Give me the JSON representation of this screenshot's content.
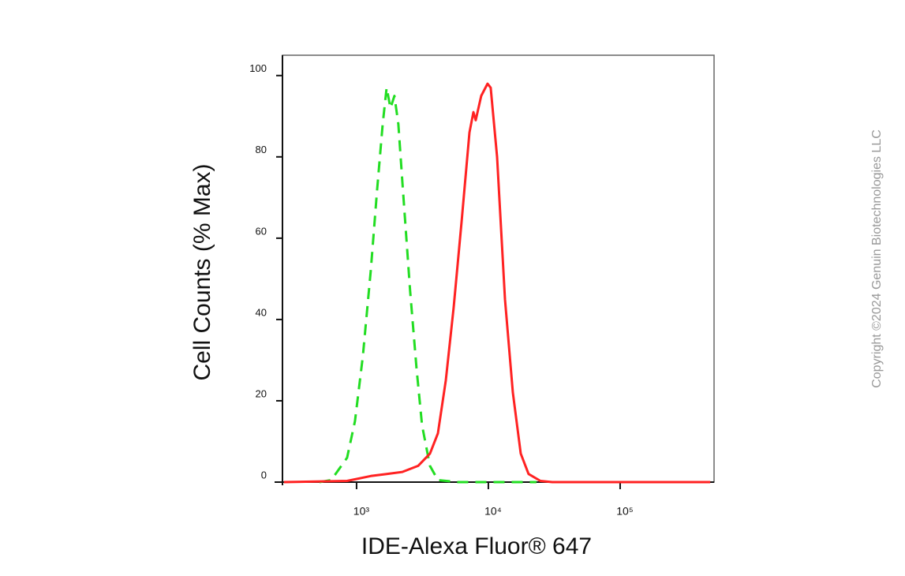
{
  "chart_data": {
    "type": "line",
    "xlabel": "IDE-Alexa Fluor® 647",
    "ylabel": "Cell Counts (% Max)",
    "watermark": "Copyright ©2024 Genuin Biotechnologies LLC",
    "xscale": "log",
    "xlim": [
      274,
      516000
    ],
    "ylim": [
      0,
      105
    ],
    "xticks": [
      {
        "value": 1000,
        "label": "10³"
      },
      {
        "value": 10000,
        "label": "10⁴"
      },
      {
        "value": 100000,
        "label": "10⁵"
      }
    ],
    "yticks": [
      0,
      20,
      40,
      60,
      80,
      100
    ],
    "series": [
      {
        "color": "#22dd22",
        "dash": true,
        "x": [
          523,
          643,
          847,
          973,
          1117,
          1282,
          1432,
          1577,
          1690,
          1809,
          1937,
          2075,
          2223,
          2551,
          2851,
          3139,
          3604,
          4139,
          5840,
          10140,
          23170
        ],
        "values": [
          0,
          0.5,
          6,
          15,
          31,
          52,
          72,
          88,
          97,
          92,
          95,
          88,
          74,
          47,
          28,
          14,
          4,
          0.5,
          0,
          0,
          0
        ]
      },
      {
        "color": "#ff2222",
        "dash": false,
        "x": [
          281,
          847,
          1282,
          1690,
          2223,
          2931,
          3604,
          4139,
          4754,
          5459,
          6259,
          7185,
          7697,
          8017,
          8830,
          9862,
          10420,
          11640,
          13370,
          15350,
          17620,
          20200,
          24830,
          30550,
          482000
        ],
        "values": [
          0,
          0.3,
          1.5,
          2,
          2.5,
          4,
          7,
          12,
          25,
          43,
          64,
          86,
          91,
          89,
          95,
          98,
          97,
          80,
          45,
          22,
          7,
          2,
          0.3,
          0,
          0
        ]
      }
    ]
  }
}
